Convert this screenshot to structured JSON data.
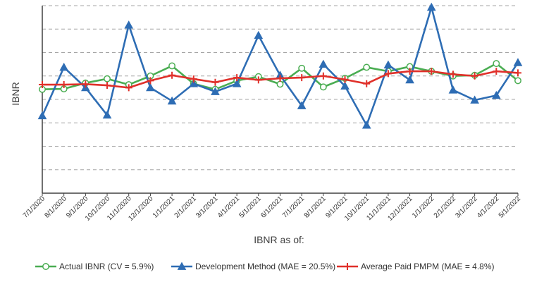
{
  "chart_data": {
    "type": "line",
    "title": "",
    "xlabel": "IBNR as of:",
    "ylabel": "IBNR",
    "y_tick_labels_shown": false,
    "grid": "horizontal dashed",
    "legend_position": "bottom",
    "categories": [
      "7/1/2020",
      "8/1/2020",
      "9/1/2020",
      "10/1/2020",
      "11/1/2020",
      "12/1/2020",
      "1/1/2021",
      "2/1/2021",
      "3/1/2021",
      "4/1/2021",
      "5/1/2021",
      "6/1/2021",
      "7/1/2021",
      "8/1/2021",
      "9/1/2021",
      "10/1/2021",
      "11/1/2021",
      "12/1/2021",
      "1/1/2022",
      "2/1/2022",
      "3/1/2022",
      "4/1/2022",
      "5/1/2022"
    ],
    "ylim": [
      0,
      8
    ],
    "series": [
      {
        "name": "Actual IBNR (CV = 5.9%)",
        "color": "#4aad52",
        "marker": "circle",
        "values": [
          4.43,
          4.45,
          4.7,
          4.88,
          4.63,
          5.0,
          5.43,
          4.67,
          4.43,
          4.8,
          4.97,
          4.65,
          5.33,
          4.53,
          4.9,
          5.37,
          5.2,
          5.4,
          5.2,
          5.0,
          5.03,
          5.53,
          4.8
        ]
      },
      {
        "name": "Development Method (MAE = 20.5%)",
        "color": "#2e6db4",
        "marker": "triangle",
        "values": [
          3.3,
          5.37,
          4.5,
          3.33,
          7.17,
          4.5,
          3.93,
          4.67,
          4.33,
          4.67,
          6.73,
          5.03,
          3.73,
          5.5,
          4.57,
          2.9,
          5.47,
          4.83,
          7.93,
          4.4,
          3.97,
          4.17,
          5.57
        ]
      },
      {
        "name": "Average Paid PMPM (MAE = 4.8%)",
        "color": "#e0302a",
        "marker": "plus",
        "values": [
          4.63,
          4.63,
          4.65,
          4.6,
          4.5,
          4.8,
          5.03,
          4.87,
          4.73,
          4.93,
          4.83,
          4.9,
          4.93,
          5.0,
          4.85,
          4.67,
          5.1,
          5.2,
          5.2,
          5.07,
          5.0,
          5.2,
          5.13
        ]
      }
    ]
  }
}
